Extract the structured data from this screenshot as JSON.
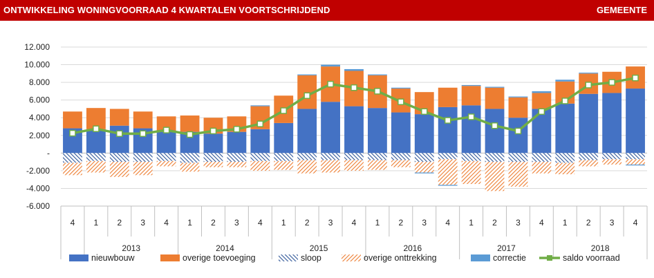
{
  "header": {
    "title": "ONTWIKKELING WONINGVOORRAAD 4 KWARTALEN VOORTSCHRIJDEND",
    "scope": "GEMEENTE"
  },
  "colors": {
    "header_bg": "#c00000",
    "nieuwbouw": "#4472c4",
    "overige_toevoeging": "#ed7d31",
    "sloop": "#2e5597",
    "overige_onttrekking": "#ed7d31",
    "correctie": "#5b9bd5",
    "saldo_voorraad": "#70ad47"
  },
  "chart_data": {
    "type": "bar",
    "stacked": true,
    "categories": [
      "4",
      "1",
      "2",
      "3",
      "4",
      "1",
      "2",
      "3",
      "4",
      "1",
      "2",
      "3",
      "4",
      "1",
      "2",
      "3",
      "4",
      "1",
      "2",
      "3",
      "4",
      "1",
      "2",
      "3",
      "4"
    ],
    "year_groups": [
      {
        "label": "",
        "start": 0,
        "end": 0
      },
      {
        "label": "2013",
        "start": 1,
        "end": 4
      },
      {
        "label": "2014",
        "start": 5,
        "end": 8
      },
      {
        "label": "2015",
        "start": 9,
        "end": 12
      },
      {
        "label": "2016",
        "start": 13,
        "end": 16
      },
      {
        "label": "2017",
        "start": 17,
        "end": 20
      },
      {
        "label": "2018",
        "start": 21,
        "end": 24
      }
    ],
    "ylim": [
      -6000,
      12000
    ],
    "yticks": [
      {
        "value": 12000,
        "label": "12.000"
      },
      {
        "value": 10000,
        "label": "10.000"
      },
      {
        "value": 8000,
        "label": "8.000"
      },
      {
        "value": 6000,
        "label": "6.000"
      },
      {
        "value": 4000,
        "label": "4.000"
      },
      {
        "value": 2000,
        "label": "2.000"
      },
      {
        "value": 0,
        "label": "-"
      },
      {
        "value": -2000,
        "label": "-2.000"
      },
      {
        "value": -4000,
        "label": "-4.000"
      },
      {
        "value": -6000,
        "label": "-6.000"
      }
    ],
    "legend_position": "bottom",
    "series": [
      {
        "name": "nieuwbouw",
        "kind": "bar-positive",
        "values": [
          2800,
          2700,
          3100,
          2800,
          2400,
          2400,
          2200,
          2400,
          2700,
          3400,
          5000,
          5800,
          5300,
          5100,
          4600,
          4400,
          5200,
          5400,
          5000,
          4000,
          5000,
          5600,
          6700,
          6800,
          7300
        ]
      },
      {
        "name": "overige toevoeging",
        "kind": "bar-positive",
        "values": [
          1900,
          2400,
          1900,
          1900,
          1750,
          1850,
          1800,
          1750,
          2600,
          3100,
          3800,
          4000,
          4000,
          3700,
          2700,
          2500,
          2200,
          2200,
          2400,
          2300,
          1800,
          2500,
          2300,
          2400,
          2500
        ]
      },
      {
        "name": "sloop",
        "kind": "bar-negative",
        "values": [
          -1100,
          -900,
          -1000,
          -1000,
          -900,
          -1100,
          -1000,
          -1000,
          -900,
          -900,
          -800,
          -800,
          -800,
          -800,
          -800,
          -1000,
          -700,
          -900,
          -1000,
          -1000,
          -1000,
          -1100,
          -800,
          -700,
          -700
        ]
      },
      {
        "name": "overige onttrekking",
        "kind": "bar-negative",
        "values": [
          -1400,
          -1300,
          -1700,
          -1500,
          -600,
          -1000,
          -600,
          -600,
          -1100,
          -1000,
          -1500,
          -1400,
          -1200,
          -1100,
          -800,
          -1200,
          -2900,
          -2600,
          -3300,
          -2800,
          -1300,
          -1300,
          -700,
          -600,
          -600
        ]
      },
      {
        "name": "correctie",
        "kind": "bar-signed",
        "values": [
          0,
          0,
          0,
          0,
          0,
          0,
          0,
          0,
          100,
          0,
          100,
          200,
          200,
          100,
          100,
          -100,
          -100,
          100,
          100,
          100,
          200,
          200,
          100,
          0,
          -100
        ]
      },
      {
        "name": "saldo voorraad",
        "kind": "line",
        "values": [
          2250,
          2750,
          2200,
          2200,
          2600,
          2100,
          2500,
          2700,
          3300,
          4800,
          6500,
          7800,
          7400,
          7000,
          5800,
          4700,
          3700,
          4100,
          3100,
          2500,
          4700,
          5900,
          7700,
          8000,
          8500
        ]
      }
    ]
  }
}
